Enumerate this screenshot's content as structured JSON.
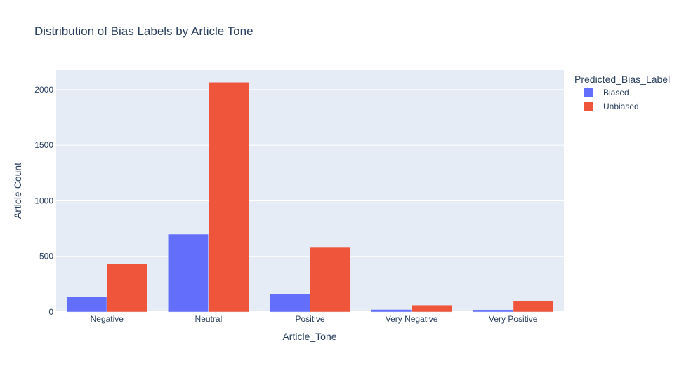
{
  "chart_data": {
    "type": "bar",
    "title": "Distribution of Bias Labels by Article Tone",
    "xlabel": "Article_Tone",
    "ylabel": "Article Count",
    "categories": [
      "Negative",
      "Neutral",
      "Positive",
      "Very Negative",
      "Very Positive"
    ],
    "series": [
      {
        "name": "Biased",
        "color": "#636efa",
        "values": [
          135,
          700,
          162,
          22,
          20
        ]
      },
      {
        "name": "Unbiased",
        "color": "#ef553b",
        "values": [
          432,
          2067,
          580,
          62,
          100
        ]
      }
    ],
    "ylim": [
      0,
      2176
    ],
    "yticks": [
      0,
      500,
      1000,
      1500,
      2000
    ],
    "grid": true,
    "legend": {
      "title": "Predicted_Bias_Label",
      "placement": "right"
    },
    "plot_bg": "#e5ecf6"
  }
}
